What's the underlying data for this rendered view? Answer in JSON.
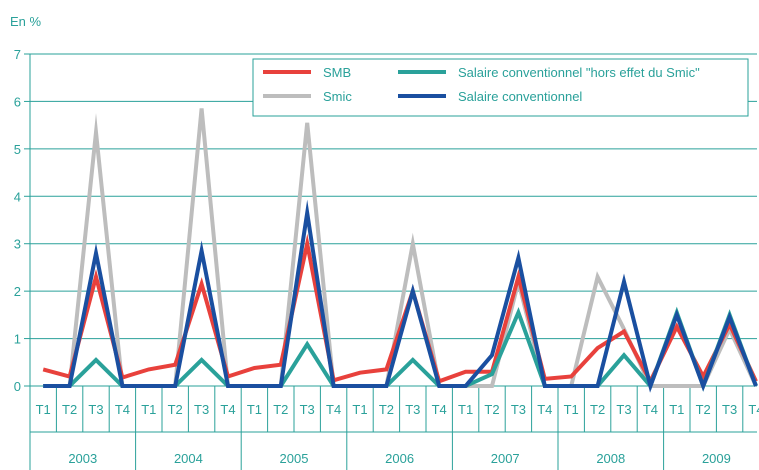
{
  "chart_data": {
    "type": "line",
    "ylabel": "En %",
    "ylim": [
      0,
      7
    ],
    "yticks": [
      0,
      1,
      2,
      3,
      4,
      5,
      6,
      7
    ],
    "quarters": [
      "T1",
      "T2",
      "T3",
      "T4"
    ],
    "years": [
      "2003",
      "2004",
      "2005",
      "2006",
      "2007",
      "2008",
      "2009"
    ],
    "grid": true,
    "legend_position": "top-right",
    "series": [
      {
        "name": "SMB",
        "color": "#e8413c",
        "values": [
          0.35,
          0.2,
          2.3,
          0.18,
          0.35,
          0.45,
          2.15,
          0.2,
          0.38,
          0.45,
          3.0,
          0.12,
          0.28,
          0.35,
          2.0,
          0.1,
          0.3,
          0.3,
          2.3,
          0.15,
          0.2,
          0.8,
          1.15,
          0.1,
          1.25,
          0.2,
          1.3,
          0.1
        ]
      },
      {
        "name": "Smic",
        "color": "#bdbdbd",
        "values": [
          0,
          0,
          5.35,
          0,
          0,
          0,
          5.85,
          0,
          0,
          0,
          5.55,
          0,
          0,
          0,
          3.0,
          0,
          0,
          0,
          2.2,
          0,
          0,
          2.3,
          1.2,
          0,
          0,
          0,
          1.2,
          0
        ]
      },
      {
        "name": "Salaire conventionnel \"hors effet du Smic\"",
        "color": "#2aa19a",
        "values": [
          0,
          0,
          0.55,
          0,
          0,
          0,
          0.55,
          0,
          0,
          0,
          0.88,
          0,
          0,
          0,
          0.55,
          0,
          0,
          0.25,
          1.55,
          0,
          0,
          0,
          0.65,
          0,
          1.55,
          0,
          1.5,
          0
        ]
      },
      {
        "name": "Salaire conventionnel",
        "color": "#1a4fa0",
        "values": [
          0,
          0,
          2.8,
          0,
          0,
          0,
          2.85,
          0,
          0,
          0,
          3.65,
          0,
          0,
          0,
          2.0,
          0,
          0,
          0.65,
          2.7,
          0,
          0,
          0,
          2.2,
          0,
          1.5,
          0,
          1.45,
          0
        ]
      }
    ]
  }
}
